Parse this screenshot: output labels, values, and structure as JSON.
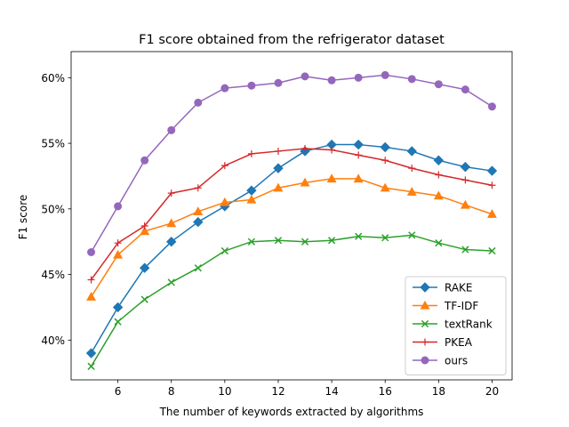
{
  "chart_data": {
    "type": "line",
    "title": "F1 score obtained from the refrigerator dataset",
    "xlabel": "The number of keywords extracted by algorithms",
    "ylabel": "F1 score",
    "x": [
      5,
      6,
      7,
      8,
      9,
      10,
      11,
      12,
      13,
      14,
      15,
      16,
      17,
      18,
      19,
      20
    ],
    "xlim": [
      4.25,
      20.75
    ],
    "ylim": [
      0.3697,
      0.6199
    ],
    "xticks": [
      6,
      8,
      10,
      12,
      14,
      16,
      18,
      20
    ],
    "xtick_labels": [
      "6",
      "8",
      "10",
      "12",
      "14",
      "16",
      "18",
      "20"
    ],
    "yticks": [
      0.4,
      0.45,
      0.5,
      0.55,
      0.6
    ],
    "ytick_labels": [
      "40%",
      "45%",
      "50%",
      "55%",
      "60%"
    ],
    "grid": false,
    "legend_position": "lower-right",
    "series": [
      {
        "name": "RAKE",
        "color": "#1f77b4",
        "marker": "diamond",
        "values": [
          0.39,
          0.425,
          0.455,
          0.475,
          0.49,
          0.502,
          0.514,
          0.531,
          0.544,
          0.549,
          0.549,
          0.547,
          0.544,
          0.537,
          0.532,
          0.529
        ]
      },
      {
        "name": "TF-IDF",
        "color": "#ff7f0e",
        "marker": "triangle",
        "values": [
          0.433,
          0.465,
          0.483,
          0.489,
          0.498,
          0.505,
          0.507,
          0.516,
          0.52,
          0.523,
          0.523,
          0.516,
          0.513,
          0.51,
          0.503,
          0.496
        ]
      },
      {
        "name": "textRank",
        "color": "#2ca02c",
        "marker": "x",
        "values": [
          0.38,
          0.414,
          0.431,
          0.444,
          0.455,
          0.468,
          0.475,
          0.476,
          0.475,
          0.476,
          0.479,
          0.478,
          0.48,
          0.474,
          0.469,
          0.468
        ]
      },
      {
        "name": "PKEA",
        "color": "#d62728",
        "marker": "plus",
        "values": [
          0.446,
          0.474,
          0.487,
          0.512,
          0.516,
          0.533,
          0.542,
          0.544,
          0.546,
          0.545,
          0.541,
          0.537,
          0.531,
          0.526,
          0.522,
          0.518
        ]
      },
      {
        "name": "ours",
        "color": "#9467bd",
        "marker": "circle",
        "values": [
          0.467,
          0.502,
          0.537,
          0.56,
          0.581,
          0.592,
          0.594,
          0.596,
          0.601,
          0.598,
          0.6,
          0.602,
          0.599,
          0.595,
          0.591,
          0.578
        ]
      }
    ]
  }
}
